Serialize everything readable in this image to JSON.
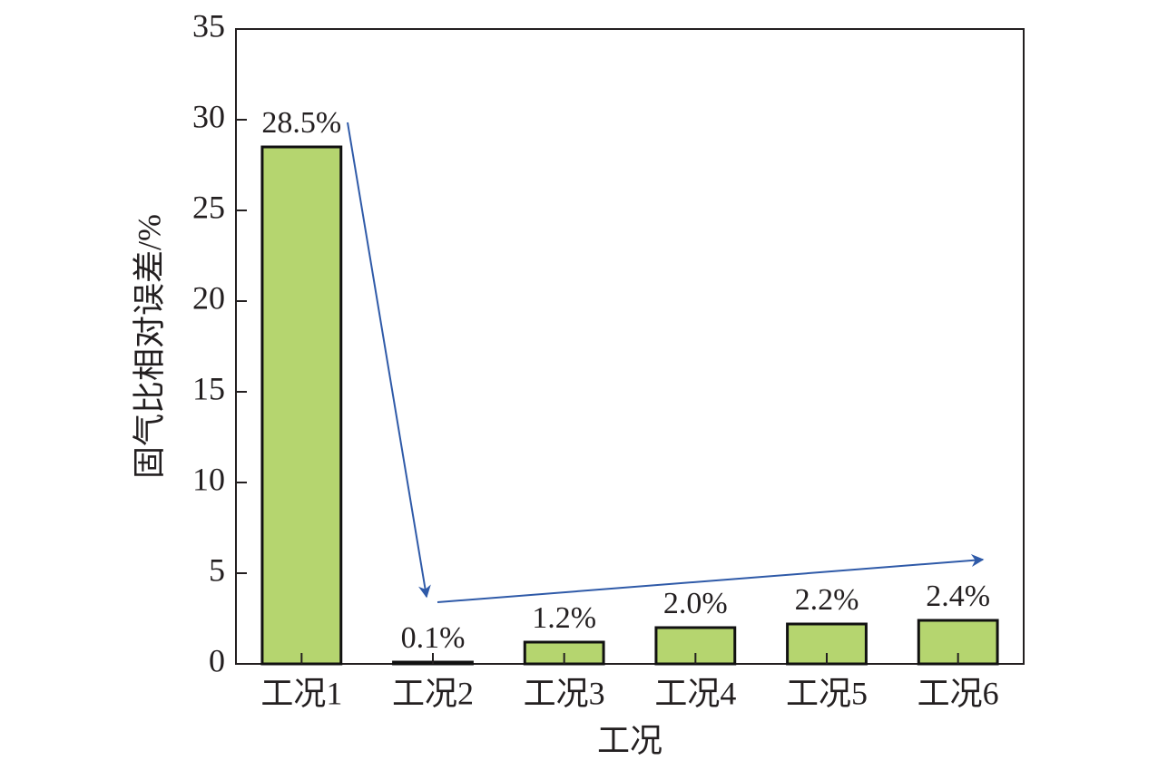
{
  "chart_data": {
    "type": "bar",
    "x_label": "工况",
    "y_label": "固气比相对误差/%",
    "categories": [
      "工况1",
      "工况2",
      "工况3",
      "工况4",
      "工况5",
      "工况6"
    ],
    "values": [
      28.5,
      0.1,
      1.2,
      2.0,
      2.2,
      2.4
    ],
    "value_labels": [
      "28.5%",
      "0.1%",
      "1.2%",
      "2.0%",
      "2.2%",
      "2.4%"
    ],
    "color": "#b5d56f",
    "ylim": [
      0,
      35
    ],
    "yticks": [
      0,
      5,
      10,
      15,
      20,
      25,
      30,
      35
    ]
  }
}
